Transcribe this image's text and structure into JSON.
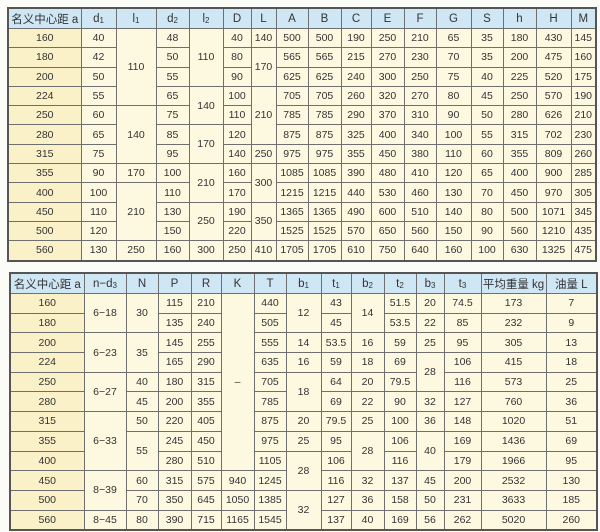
{
  "table1": {
    "headers": [
      {
        "main": "名义中心距 a",
        "sub": ""
      },
      {
        "main": "d",
        "sub": "1"
      },
      {
        "main": "l",
        "sub": "1"
      },
      {
        "main": "d",
        "sub": "2"
      },
      {
        "main": "l",
        "sub": "2"
      },
      {
        "main": "D",
        "sub": ""
      },
      {
        "main": "L",
        "sub": ""
      },
      {
        "main": "A",
        "sub": ""
      },
      {
        "main": "B",
        "sub": ""
      },
      {
        "main": "C",
        "sub": ""
      },
      {
        "main": "E",
        "sub": ""
      },
      {
        "main": "F",
        "sub": ""
      },
      {
        "main": "G",
        "sub": ""
      },
      {
        "main": "S",
        "sub": ""
      },
      {
        "main": "h",
        "sub": ""
      },
      {
        "main": "H",
        "sub": ""
      },
      {
        "main": "M",
        "sub": ""
      }
    ],
    "columns": [
      [
        "160",
        "180",
        "200",
        "224",
        "250",
        "280",
        "315",
        "355",
        "400",
        "450",
        "500",
        "560"
      ],
      [
        "40",
        "42",
        "50",
        "55",
        "60",
        "65",
        "75",
        "90",
        "100",
        "110",
        "120",
        "130"
      ],
      [
        "110",
        null,
        null,
        null,
        "140",
        null,
        null,
        "170",
        "210",
        null,
        null,
        "250"
      ],
      [
        "48",
        "50",
        "55",
        "65",
        "75",
        "85",
        "95",
        "100",
        "110",
        "130",
        "150",
        "160"
      ],
      [
        "110",
        null,
        null,
        "140",
        null,
        "170",
        null,
        "210",
        null,
        "250",
        null,
        "300"
      ],
      [
        "40",
        "80",
        "90",
        "100",
        "110",
        "120",
        "140",
        "160",
        "170",
        "190",
        "220",
        "250"
      ],
      [
        "140",
        "170",
        null,
        "210",
        null,
        null,
        "250",
        "300",
        null,
        "350",
        null,
        "410"
      ],
      [
        "500",
        "565",
        "625",
        "705",
        "785",
        "875",
        "975",
        "1085",
        "1215",
        "1365",
        "1525",
        "1705"
      ],
      [
        "500",
        "565",
        "625",
        "705",
        "785",
        "875",
        "975",
        "1085",
        "1215",
        "1365",
        "1525",
        "1705"
      ],
      [
        "190",
        "215",
        "240",
        "260",
        "290",
        "325",
        "355",
        "390",
        "440",
        "490",
        "570",
        "610"
      ],
      [
        "250",
        "270",
        "300",
        "320",
        "370",
        "400",
        "450",
        "480",
        "530",
        "600",
        "650",
        "750"
      ],
      [
        "210",
        "230",
        "250",
        "270",
        "310",
        "340",
        "380",
        "410",
        "460",
        "510",
        "560",
        "640"
      ],
      [
        "65",
        "70",
        "75",
        "80",
        "90",
        "100",
        "110",
        "120",
        "130",
        "140",
        "150",
        "160"
      ],
      [
        "35",
        "35",
        "40",
        "45",
        "50",
        "55",
        "60",
        "65",
        "70",
        "80",
        "90",
        "100"
      ],
      [
        "180",
        "200",
        "225",
        "250",
        "280",
        "315",
        "355",
        "400",
        "450",
        "500",
        "560",
        "630"
      ],
      [
        "430",
        "475",
        "520",
        "570",
        "626",
        "702",
        "809",
        "900",
        "970",
        "1071",
        "1210",
        "1325"
      ],
      [
        "145",
        "160",
        "175",
        "190",
        "210",
        "230",
        "260",
        "285",
        "305",
        "345",
        "435",
        "475"
      ]
    ]
  },
  "table2": {
    "headers": [
      {
        "main": "名义中心距 a",
        "sub": ""
      },
      {
        "main": "n−d",
        "sub": "3"
      },
      {
        "main": "N",
        "sub": ""
      },
      {
        "main": "P",
        "sub": ""
      },
      {
        "main": "R",
        "sub": ""
      },
      {
        "main": "K",
        "sub": ""
      },
      {
        "main": "T",
        "sub": ""
      },
      {
        "main": "b",
        "sub": "1"
      },
      {
        "main": "t",
        "sub": "1"
      },
      {
        "main": "b",
        "sub": "2"
      },
      {
        "main": "t",
        "sub": "2"
      },
      {
        "main": "b",
        "sub": "3"
      },
      {
        "main": "t",
        "sub": "3"
      },
      {
        "main": "平均重量 kg",
        "sub": ""
      },
      {
        "main": "油量 L",
        "sub": ""
      }
    ],
    "columns": [
      [
        "160",
        "180",
        "200",
        "224",
        "250",
        "280",
        "315",
        "355",
        "400",
        "450",
        "500",
        "560"
      ],
      [
        "6−18",
        null,
        "6−23",
        null,
        "6−27",
        null,
        "6−33",
        null,
        null,
        "8−39",
        null,
        "8−45"
      ],
      [
        "30",
        null,
        "35",
        null,
        "40",
        "45",
        "50",
        "55",
        null,
        "60",
        "70",
        "80"
      ],
      [
        "115",
        "135",
        "145",
        "165",
        "180",
        "200",
        "220",
        "245",
        "280",
        "315",
        "350",
        "390"
      ],
      [
        "210",
        "240",
        "255",
        "290",
        "315",
        "355",
        "405",
        "450",
        "510",
        "575",
        "645",
        "715"
      ],
      [
        "–",
        null,
        null,
        null,
        null,
        null,
        null,
        null,
        null,
        "940",
        "1050",
        "1165"
      ],
      [
        "440",
        "505",
        "555",
        "635",
        "705",
        "785",
        "875",
        "975",
        "1105",
        "1245",
        "1385",
        "1545"
      ],
      [
        "12",
        null,
        "14",
        "16",
        "18",
        null,
        "20",
        "25",
        "28",
        null,
        "32",
        null
      ],
      [
        "43",
        "45",
        "53.5",
        "59",
        "64",
        "69",
        "79.5",
        "95",
        "106",
        "116",
        "127",
        "137"
      ],
      [
        "14",
        null,
        "16",
        "18",
        "20",
        "22",
        "25",
        "28",
        null,
        "32",
        "36",
        "40"
      ],
      [
        "51.5",
        "53.5",
        "59",
        "69",
        "79.5",
        "90",
        "100",
        "106",
        "116",
        "137",
        "158",
        "169"
      ],
      [
        "20",
        "22",
        "25",
        "28",
        null,
        "32",
        "36",
        "40",
        null,
        "45",
        "50",
        "56"
      ],
      [
        "74.5",
        "85",
        "95",
        "106",
        "116",
        "127",
        "148",
        "169",
        "179",
        "200",
        "231",
        "262"
      ],
      [
        "173",
        "232",
        "305",
        "415",
        "573",
        "760",
        "1020",
        "1436",
        "1966",
        "2532",
        "3633",
        "5020"
      ],
      [
        "7",
        "9",
        "13",
        "18",
        "25",
        "36",
        "51",
        "69",
        "95",
        "130",
        "185",
        "260"
      ]
    ]
  }
}
